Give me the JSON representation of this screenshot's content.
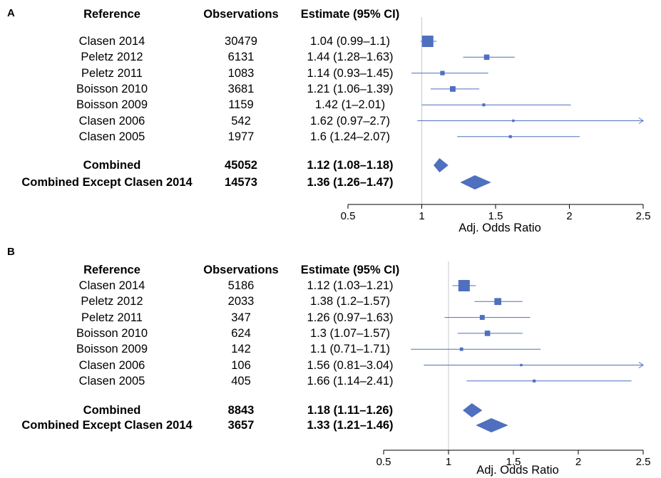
{
  "chart_data": [
    {
      "panel": "A",
      "type": "forest",
      "headers": [
        "Reference",
        "Observations",
        "Estimate (95% CI)"
      ],
      "rows": [
        {
          "reference": "Clasen 2014",
          "observations": "30479",
          "estimate_text": "1.04 (0.99–1.1)",
          "est": 1.04,
          "lo": 0.99,
          "hi": 1.1,
          "weight": 1.0
        },
        {
          "reference": "Peletz 2012",
          "observations": "6131",
          "estimate_text": "1.44 (1.28–1.63)",
          "est": 1.44,
          "lo": 1.28,
          "hi": 1.63,
          "weight": 0.4
        },
        {
          "reference": "Peletz 2011",
          "observations": "1083",
          "estimate_text": "1.14 (0.93–1.45)",
          "est": 1.14,
          "lo": 0.93,
          "hi": 1.45,
          "weight": 0.3
        },
        {
          "reference": "Boisson 2010",
          "observations": "3681",
          "estimate_text": "1.21 (1.06–1.39)",
          "est": 1.21,
          "lo": 1.06,
          "hi": 1.39,
          "weight": 0.42
        },
        {
          "reference": "Boisson 2009",
          "observations": "1159",
          "estimate_text": "1.42 (1–2.01)",
          "est": 1.42,
          "lo": 1.0,
          "hi": 2.01,
          "weight": 0.15
        },
        {
          "reference": "Clasen 2006",
          "observations": "542",
          "estimate_text": "1.62 (0.97–2.7)",
          "est": 1.62,
          "lo": 0.97,
          "hi": 2.7,
          "weight": 0.1
        },
        {
          "reference": "Clasen 2005",
          "observations": "1977",
          "estimate_text": "1.6 (1.24–2.07)",
          "est": 1.6,
          "lo": 1.24,
          "hi": 2.07,
          "weight": 0.15
        }
      ],
      "combined": [
        {
          "reference": "Combined",
          "observations": "45052",
          "estimate_text": "1.12 (1.08–1.18)",
          "est": 1.12,
          "lo": 1.08,
          "hi": 1.18
        },
        {
          "reference": "Combined Except Clasen 2014",
          "observations": "14573",
          "estimate_text": "1.36 (1.26–1.47)",
          "est": 1.36,
          "lo": 1.26,
          "hi": 1.47
        }
      ],
      "xlim": [
        0.5,
        2.5
      ],
      "xticks": [
        "0.5",
        "1",
        "1.5",
        "2",
        "2.5"
      ],
      "xlabel": "Adj. Odds Ratio",
      "reference_line": 1
    },
    {
      "panel": "B",
      "type": "forest",
      "headers": [
        "Reference",
        "Observations",
        "Estimate (95% CI)"
      ],
      "rows": [
        {
          "reference": "Clasen 2014",
          "observations": "5186",
          "estimate_text": "1.12 (1.03–1.21)",
          "est": 1.12,
          "lo": 1.03,
          "hi": 1.21,
          "weight": 1.0
        },
        {
          "reference": "Peletz 2012",
          "observations": "2033",
          "estimate_text": "1.38 (1.2–1.57)",
          "est": 1.38,
          "lo": 1.2,
          "hi": 1.57,
          "weight": 0.55
        },
        {
          "reference": "Peletz 2011",
          "observations": "347",
          "estimate_text": "1.26 (0.97–1.63)",
          "est": 1.26,
          "lo": 0.97,
          "hi": 1.63,
          "weight": 0.35
        },
        {
          "reference": "Boisson 2010",
          "observations": "624",
          "estimate_text": "1.3 (1.07–1.57)",
          "est": 1.3,
          "lo": 1.07,
          "hi": 1.57,
          "weight": 0.4
        },
        {
          "reference": "Boisson 2009",
          "observations": "142",
          "estimate_text": "1.1 (0.71–1.71)",
          "est": 1.1,
          "lo": 0.71,
          "hi": 1.71,
          "weight": 0.2
        },
        {
          "reference": "Clasen 2006",
          "observations": "106",
          "estimate_text": "1.56 (0.81–3.04)",
          "est": 1.56,
          "lo": 0.81,
          "hi": 3.04,
          "weight": 0.1
        },
        {
          "reference": "Clasen 2005",
          "observations": "405",
          "estimate_text": "1.66 (1.14–2.41)",
          "est": 1.66,
          "lo": 1.14,
          "hi": 2.41,
          "weight": 0.15
        }
      ],
      "combined": [
        {
          "reference": "Combined",
          "observations": "8843",
          "estimate_text": "1.18 (1.11–1.26)",
          "est": 1.18,
          "lo": 1.11,
          "hi": 1.26
        },
        {
          "reference": "Combined Except Clasen 2014",
          "observations": "3657",
          "estimate_text": "1.33 (1.21–1.46)",
          "est": 1.33,
          "lo": 1.21,
          "hi": 1.46
        }
      ],
      "xlim": [
        0.5,
        2.5
      ],
      "xticks": [
        "0.5",
        "1",
        "1.5",
        "2",
        "2.5"
      ],
      "xlabel": "Adj. Odds Ratio",
      "reference_line": 1
    }
  ],
  "colors": {
    "marker": "#4f6fbf",
    "reference_line": "#c8c8c8",
    "axis": "#000000"
  }
}
